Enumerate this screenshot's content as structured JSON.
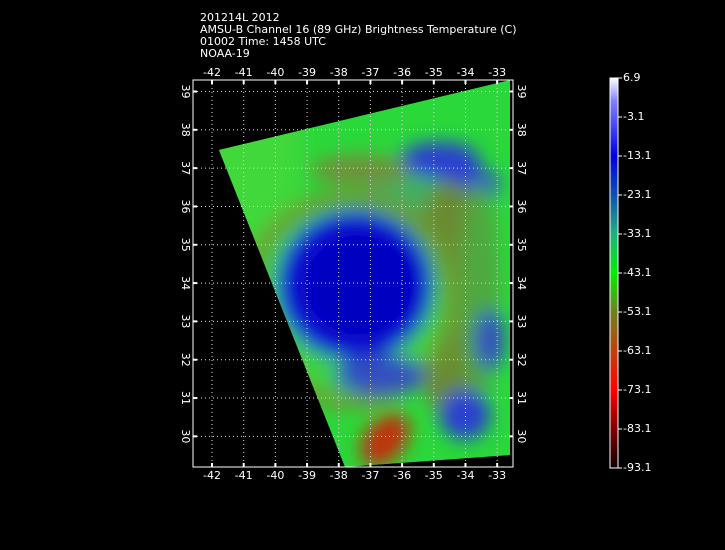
{
  "header": {
    "lines": [
      "201214L 2012",
      "AMSU-B Channel 16 (89 GHz) Brightness Temperature (C)",
      "01002 Time: 1458 UTC",
      "NOAA-19"
    ]
  },
  "map": {
    "xlim": [
      -42.6,
      -32.5
    ],
    "ylim": [
      29.2,
      39.3
    ],
    "xticks": [
      -42,
      -41,
      -40,
      -39,
      -38,
      -37,
      -36,
      -35,
      -34,
      -33
    ],
    "yticks": [
      30,
      31,
      32,
      33,
      34,
      35,
      36,
      37,
      38,
      39
    ]
  },
  "colorbar": {
    "lim": [
      -93.1,
      6.9
    ],
    "ticks": [
      6.9,
      -3.1,
      -13.1,
      -23.1,
      -33.1,
      -43.1,
      -53.1,
      -63.1,
      -73.1,
      -83.1,
      -93.1
    ]
  }
}
